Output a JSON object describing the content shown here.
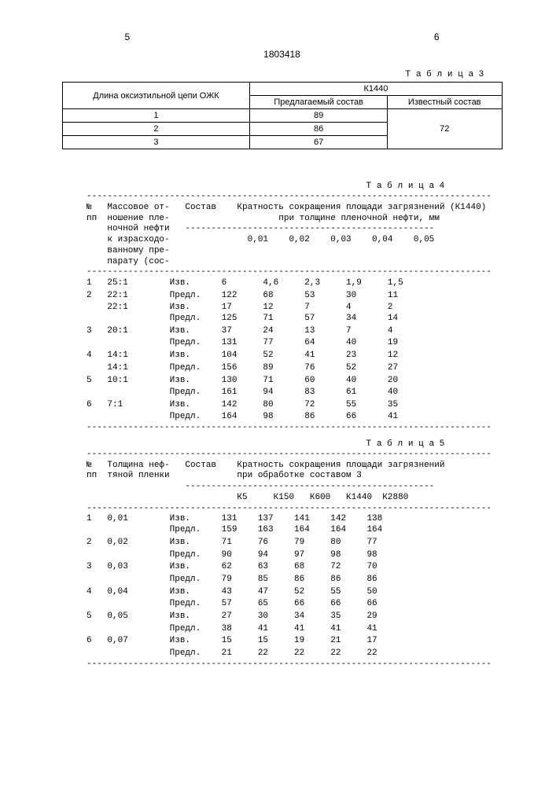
{
  "header": {
    "left_page": "5",
    "right_page": "6",
    "doc_id": "1803418"
  },
  "table3": {
    "label": "Т а б л и ц а 3",
    "col1_header": "Длина оксиэтильной цепи ОЖК",
    "k_header": "К1440",
    "sub_left": "Предлагаемый состав",
    "sub_right": "Известный состав",
    "rows": [
      {
        "n": "1",
        "prop": "89",
        "known": "72"
      },
      {
        "n": "2",
        "prop": "86",
        "known": ""
      },
      {
        "n": "3",
        "prop": "67",
        "known": ""
      }
    ]
  },
  "table4": {
    "label": "Т а б л и ц а 4",
    "hdr_pp": "№\nпп",
    "hdr_mass": "Массовое от-\nношение пле-\nночной нефти\nк израсходо-\nванному пре-\nпарату (сос-\nтав 3)",
    "hdr_comp": "Состав",
    "hdr_k_top": "Кратность сокращения площади загрязнений (К1440)",
    "hdr_k_bot": "при толщине пленочной нефти, мм",
    "sub_cols": [
      "0,01",
      "0,02",
      "0,03",
      "0,04",
      "0,05"
    ],
    "comp_izv": "Изв.",
    "comp_pred": "Предл.",
    "rows": [
      {
        "n": "1",
        "ratio": "25:1",
        "comp": "Изв.",
        "v": [
          "6",
          "4,6",
          "2,3",
          "1,9",
          "1,5"
        ]
      },
      {
        "n": "2",
        "ratio": "22:1",
        "comp": "Предл.",
        "v": [
          "122",
          "68",
          "53",
          "30",
          "11"
        ]
      },
      {
        "n": "",
        "ratio": "22:1",
        "comp": "Изв.",
        "v": [
          "17",
          "12",
          "7",
          "4",
          "2"
        ]
      },
      {
        "n": "",
        "ratio": "",
        "comp": "Предл.",
        "v": [
          "125",
          "71",
          "57",
          "34",
          "14"
        ]
      },
      {
        "n": "3",
        "ratio": "20:1",
        "comp": "Изв.",
        "v": [
          "37",
          "24",
          "13",
          "7",
          "4"
        ]
      },
      {
        "n": "",
        "ratio": "",
        "comp": "Предл.",
        "v": [
          "131",
          "77",
          "64",
          "40",
          "19"
        ]
      },
      {
        "n": "4",
        "ratio": "14:1",
        "comp": "Изв.",
        "v": [
          "104",
          "52",
          "41",
          "23",
          "12"
        ]
      },
      {
        "n": "",
        "ratio": "14:1",
        "comp": "Предл.",
        "v": [
          "156",
          "89",
          "76",
          "52",
          "27"
        ]
      },
      {
        "n": "5",
        "ratio": "10:1",
        "comp": "Изв.",
        "v": [
          "130",
          "71",
          "60",
          "40",
          "20"
        ]
      },
      {
        "n": "",
        "ratio": "",
        "comp": "Предл.",
        "v": [
          "161",
          "94",
          "83",
          "61",
          "40"
        ]
      },
      {
        "n": "6",
        "ratio": "7:1",
        "comp": "Изв.",
        "v": [
          "142",
          "80",
          "72",
          "55",
          "35"
        ]
      },
      {
        "n": "",
        "ratio": "",
        "comp": "Предл.",
        "v": [
          "164",
          "98",
          "86",
          "66",
          "41"
        ]
      }
    ]
  },
  "table5": {
    "label": "Т а б л и ц а 5",
    "hdr_pp": "№\nпп",
    "hdr_thick": "Толщина неф-\nтяной пленки",
    "hdr_comp": "Состав",
    "hdr_k_top": "Кратность сокращения площади загрязнений",
    "hdr_k_bot": "при обработке составом 3",
    "sub_cols": [
      "К5",
      "К150",
      "К600",
      "К1440",
      "К2880"
    ],
    "rows": [
      {
        "n": "1",
        "t": "0,01",
        "pair": [
          {
            "comp": "Изв.",
            "v": [
              "131",
              "137",
              "141",
              "142",
              "138"
            ]
          },
          {
            "comp": "Предл.",
            "v": [
              "159",
              "163",
              "164",
              "164",
              "164"
            ]
          }
        ]
      },
      {
        "n": "2",
        "t": "0,02",
        "pair": [
          {
            "comp": "Изв.",
            "v": [
              "71",
              "76",
              "79",
              "80",
              "77"
            ]
          },
          {
            "comp": "Предл.",
            "v": [
              "90",
              "94",
              "97",
              "98",
              "98"
            ]
          }
        ]
      },
      {
        "n": "3",
        "t": "0,03",
        "pair": [
          {
            "comp": "Изв.",
            "v": [
              "62",
              "63",
              "68",
              "72",
              "70"
            ]
          },
          {
            "comp": "Предл.",
            "v": [
              "79",
              "85",
              "86",
              "86",
              "86"
            ]
          }
        ]
      },
      {
        "n": "4",
        "t": "0,04",
        "pair": [
          {
            "comp": "Изв.",
            "v": [
              "43",
              "47",
              "52",
              "55",
              "50"
            ]
          },
          {
            "comp": "Предл.",
            "v": [
              "57",
              "65",
              "66",
              "66",
              "66"
            ]
          }
        ]
      },
      {
        "n": "5",
        "t": "0,05",
        "pair": [
          {
            "comp": "Изв.",
            "v": [
              "27",
              "30",
              "34",
              "35",
              "29"
            ]
          },
          {
            "comp": "Предл.",
            "v": [
              "38",
              "41",
              "41",
              "41",
              "41"
            ]
          }
        ]
      },
      {
        "n": "6",
        "t": "0,07",
        "pair": [
          {
            "comp": "Изв.",
            "v": [
              "15",
              "15",
              "19",
              "21",
              "17"
            ]
          },
          {
            "comp": "Предл.",
            "v": [
              "21",
              "22",
              "22",
              "22",
              "22"
            ]
          }
        ]
      }
    ]
  },
  "layout": {
    "dash_full": "------------------------------------------------------------------------------",
    "dash_inner": "                              ------------------------------------------------",
    "t4_col_widths": {
      "n": 3,
      "ratio": 12,
      "comp": 10,
      "val": 8
    },
    "t5_col_widths": {
      "n": 3,
      "t": 12,
      "comp": 10,
      "val": 7
    }
  }
}
